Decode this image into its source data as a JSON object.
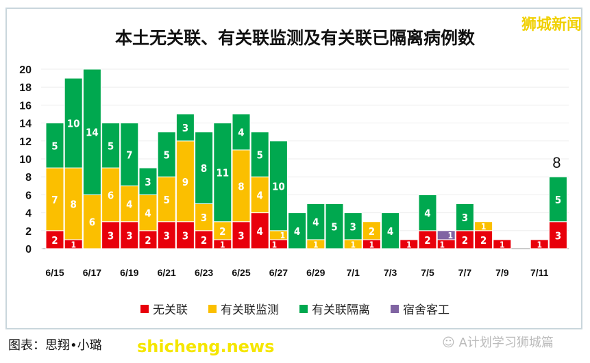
{
  "watermark_top": "狮城新闻",
  "watermark_bottom": "shicheng.news",
  "credit": "图表：思翔•小璐",
  "wechat_label": "A计划学习狮城篇",
  "chart_data": {
    "type": "bar",
    "stacked": true,
    "title": "本土无关联、有关联监测及有关联已隔离病例数",
    "categories": [
      "6/15",
      "6/16",
      "6/17",
      "6/18",
      "6/19",
      "6/20",
      "6/21",
      "6/22",
      "6/23",
      "6/24",
      "6/25",
      "6/26",
      "6/27",
      "6/28",
      "6/29",
      "6/30",
      "7/1",
      "7/2",
      "7/3",
      "7/4",
      "7/5",
      "7/6",
      "7/7",
      "7/8",
      "7/9",
      "7/10",
      "7/11",
      "7/12"
    ],
    "xtick_labels": [
      "6/15",
      "6/17",
      "6/19",
      "6/21",
      "6/23",
      "6/25",
      "6/27",
      "6/29",
      "7/1",
      "7/3",
      "7/5",
      "7/7",
      "7/9",
      "7/11"
    ],
    "yticks": [
      0,
      2,
      4,
      6,
      8,
      10,
      12,
      14,
      16,
      18,
      20
    ],
    "ylim": [
      0,
      20
    ],
    "grid": true,
    "legend_position": "bottom",
    "series": [
      {
        "name": "无关联",
        "color": "#e8000b",
        "values": [
          2,
          1,
          0,
          3,
          3,
          2,
          3,
          3,
          2,
          1,
          3,
          4,
          1,
          0,
          0,
          0,
          0,
          1,
          0,
          1,
          2,
          1,
          2,
          2,
          1,
          0,
          1,
          3
        ]
      },
      {
        "name": "有关联监测",
        "color": "#fbbf00",
        "values": [
          7,
          8,
          6,
          6,
          4,
          4,
          5,
          9,
          3,
          2,
          8,
          4,
          1,
          0,
          1,
          0,
          1,
          2,
          0,
          0,
          0,
          0,
          0,
          1,
          0,
          0,
          0,
          0
        ]
      },
      {
        "name": "有关联隔离",
        "color": "#00a84f",
        "values": [
          5,
          10,
          14,
          5,
          7,
          3,
          5,
          3,
          8,
          11,
          4,
          5,
          10,
          4,
          4,
          5,
          3,
          0,
          4,
          0,
          4,
          0,
          3,
          0,
          0,
          0,
          0,
          5
        ]
      },
      {
        "name": "宿舍客工",
        "color": "#8064a2",
        "values": [
          0,
          0,
          0,
          0,
          0,
          0,
          0,
          0,
          0,
          0,
          0,
          0,
          0,
          0,
          0,
          0,
          0,
          0,
          0,
          0,
          0,
          1,
          0,
          0,
          0,
          0,
          0,
          0
        ]
      }
    ],
    "annotations": [
      {
        "category": "7/12",
        "text": "8"
      }
    ]
  }
}
